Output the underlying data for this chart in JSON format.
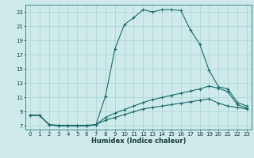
{
  "xlabel": "Humidex (Indice chaleur)",
  "bg_color": "#ceeaea",
  "grid_color": "#a8d4d4",
  "line_color": "#1a6b6b",
  "xlim": [
    -0.5,
    23.5
  ],
  "ylim": [
    6.5,
    24.0
  ],
  "yticks": [
    7,
    9,
    11,
    13,
    15,
    17,
    19,
    21,
    23
  ],
  "xticks": [
    0,
    1,
    2,
    3,
    4,
    5,
    6,
    7,
    8,
    9,
    10,
    11,
    12,
    13,
    14,
    15,
    16,
    17,
    18,
    19,
    20,
    21,
    22,
    23
  ],
  "curve1_x": [
    0,
    1,
    2,
    3,
    4,
    5,
    6,
    7,
    8,
    9,
    10,
    11,
    12,
    13,
    14,
    15,
    16,
    17,
    18,
    19,
    20,
    21,
    22,
    23
  ],
  "curve1_y": [
    8.5,
    8.5,
    7.2,
    7.0,
    7.0,
    7.0,
    7.0,
    7.2,
    11.2,
    17.8,
    21.2,
    22.2,
    23.3,
    23.0,
    23.3,
    23.3,
    23.2,
    20.5,
    18.5,
    14.8,
    12.5,
    12.2,
    10.3,
    9.8
  ],
  "curve2_x": [
    0,
    1,
    2,
    3,
    4,
    5,
    6,
    7,
    8,
    9,
    10,
    11,
    12,
    13,
    14,
    15,
    16,
    17,
    18,
    19,
    20,
    21,
    22,
    23
  ],
  "curve2_y": [
    8.5,
    8.5,
    7.2,
    7.1,
    7.1,
    7.1,
    7.1,
    7.2,
    8.2,
    8.8,
    9.3,
    9.8,
    10.3,
    10.7,
    11.0,
    11.3,
    11.6,
    11.9,
    12.2,
    12.6,
    12.3,
    11.8,
    10.0,
    9.5
  ],
  "curve3_x": [
    0,
    1,
    2,
    3,
    4,
    5,
    6,
    7,
    8,
    9,
    10,
    11,
    12,
    13,
    14,
    15,
    16,
    17,
    18,
    19,
    20,
    21,
    22,
    23
  ],
  "curve3_y": [
    8.5,
    8.5,
    7.2,
    7.0,
    7.0,
    7.0,
    7.0,
    7.2,
    7.8,
    8.2,
    8.6,
    9.0,
    9.4,
    9.6,
    9.8,
    10.0,
    10.2,
    10.4,
    10.6,
    10.8,
    10.2,
    9.8,
    9.6,
    9.4
  ],
  "tick_fontsize": 5.0,
  "xlabel_fontsize": 6.0
}
